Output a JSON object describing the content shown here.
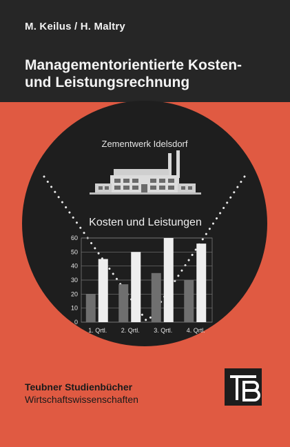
{
  "authors": "M. Keilus / H. Maltry",
  "title_line_1": "Managementorientierte Kosten-",
  "title_line_2": "und Leistungsrechnung",
  "illustration": {
    "caption_top": "Zementwerk Idelsdorf",
    "caption_chart": "Kosten und Leistungen"
  },
  "chart_data": {
    "type": "bar",
    "title": "Kosten und Leistungen",
    "categories": [
      "1. Qrtl.",
      "2. Qrtl.",
      "3. Qrtl.",
      "4. Qrtl."
    ],
    "series": [
      {
        "values": [
          20,
          27,
          35,
          30
        ]
      },
      {
        "values": [
          45,
          50,
          60,
          56
        ]
      }
    ],
    "ylim": [
      0,
      60
    ],
    "yticks": [
      0,
      10,
      20,
      30,
      40,
      50,
      60
    ],
    "grid": true,
    "colors": [
      "#6f6f6f",
      "#eeeeee"
    ]
  },
  "series_title": "Teubner Studienbücher",
  "series_subtitle": "Wirtschaftswissenschaften",
  "colors": {
    "background": "#e05a42",
    "top_band": "#262626",
    "circle": "#1e1e1e"
  },
  "logo": "TB-logo"
}
